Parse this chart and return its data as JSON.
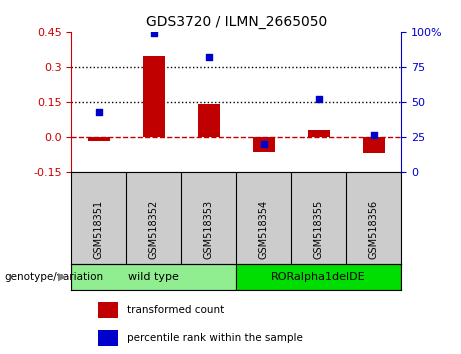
{
  "title": "GDS3720 / ILMN_2665050",
  "samples": [
    "GSM518351",
    "GSM518352",
    "GSM518353",
    "GSM518354",
    "GSM518355",
    "GSM518356"
  ],
  "transformed_count": [
    -0.02,
    0.345,
    0.14,
    -0.065,
    0.03,
    -0.07
  ],
  "percentile_rank": [
    43,
    99,
    82,
    20,
    52,
    26
  ],
  "ylim_left": [
    -0.15,
    0.45
  ],
  "ylim_right": [
    0,
    100
  ],
  "yticks_left": [
    -0.15,
    0.0,
    0.15,
    0.3,
    0.45
  ],
  "yticks_right": [
    0,
    25,
    50,
    75,
    100
  ],
  "hlines": [
    0.15,
    0.3
  ],
  "bar_color": "#c00000",
  "scatter_color": "#0000cc",
  "zero_line_color": "#c00000",
  "group1_label": "wild type",
  "group2_label": "RORalpha1delDE",
  "group1_indices": [
    0,
    1,
    2
  ],
  "group2_indices": [
    3,
    4,
    5
  ],
  "group1_color": "#90ee90",
  "group2_color": "#00dd00",
  "genotype_label": "genotype/variation",
  "legend_bar_label": "transformed count",
  "legend_scatter_label": "percentile rank within the sample",
  "background_color": "#ffffff",
  "tick_label_color_left": "#cc0000",
  "tick_label_color_right": "#0000cc",
  "label_bg_color": "#cccccc"
}
